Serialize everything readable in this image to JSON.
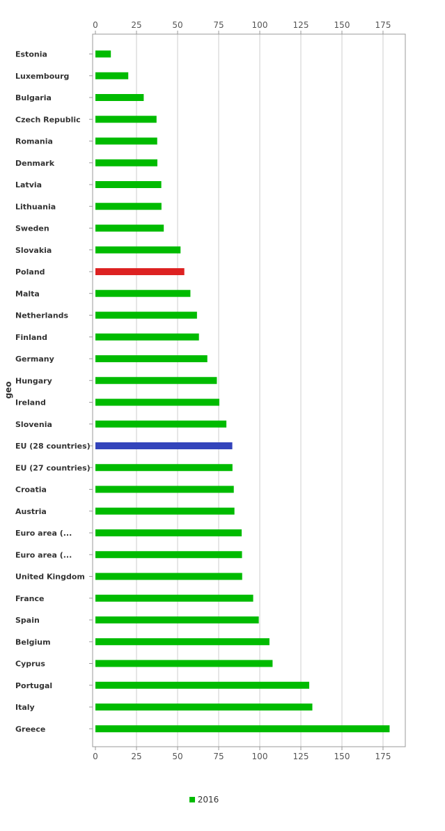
{
  "chart_data": {
    "type": "bar",
    "orientation": "horizontal",
    "ylabel": "geo",
    "xlim": [
      0,
      185
    ],
    "xticks": [
      0,
      25,
      50,
      75,
      100,
      125,
      150,
      175
    ],
    "grid": true,
    "legend_position": "bottom-center",
    "categories": [
      "Estonia",
      "Luxembourg",
      "Bulgaria",
      "Czech Republic",
      "Romania",
      "Denmark",
      "Latvia",
      "Lithuania",
      "Sweden",
      "Slovakia",
      "Poland",
      "Malta",
      "Netherlands",
      "Finland",
      "Germany",
      "Hungary",
      "Ireland",
      "Slovenia",
      "EU (28 countries)",
      "EU (27 countries)",
      "Croatia",
      "Austria",
      "Euro area (...",
      "Euro area (...",
      "United Kingdom",
      "France",
      "Spain",
      "Belgium",
      "Cyprus",
      "Portugal",
      "Italy",
      "Greece"
    ],
    "series": [
      {
        "name": "2016",
        "color": "#00bb00",
        "values": [
          9.4,
          20.0,
          29.4,
          37.2,
          37.6,
          37.7,
          40.1,
          40.2,
          41.6,
          51.8,
          54.1,
          57.8,
          61.8,
          63.0,
          68.1,
          73.9,
          75.4,
          79.7,
          83.3,
          83.4,
          84.2,
          84.6,
          89.0,
          89.2,
          89.3,
          96.0,
          99.4,
          105.9,
          107.8,
          130.1,
          132.0,
          179.0
        ]
      }
    ],
    "highlight_colors": {
      "Poland": "#dd2222",
      "EU (28 countries)": "#3344bb"
    }
  }
}
